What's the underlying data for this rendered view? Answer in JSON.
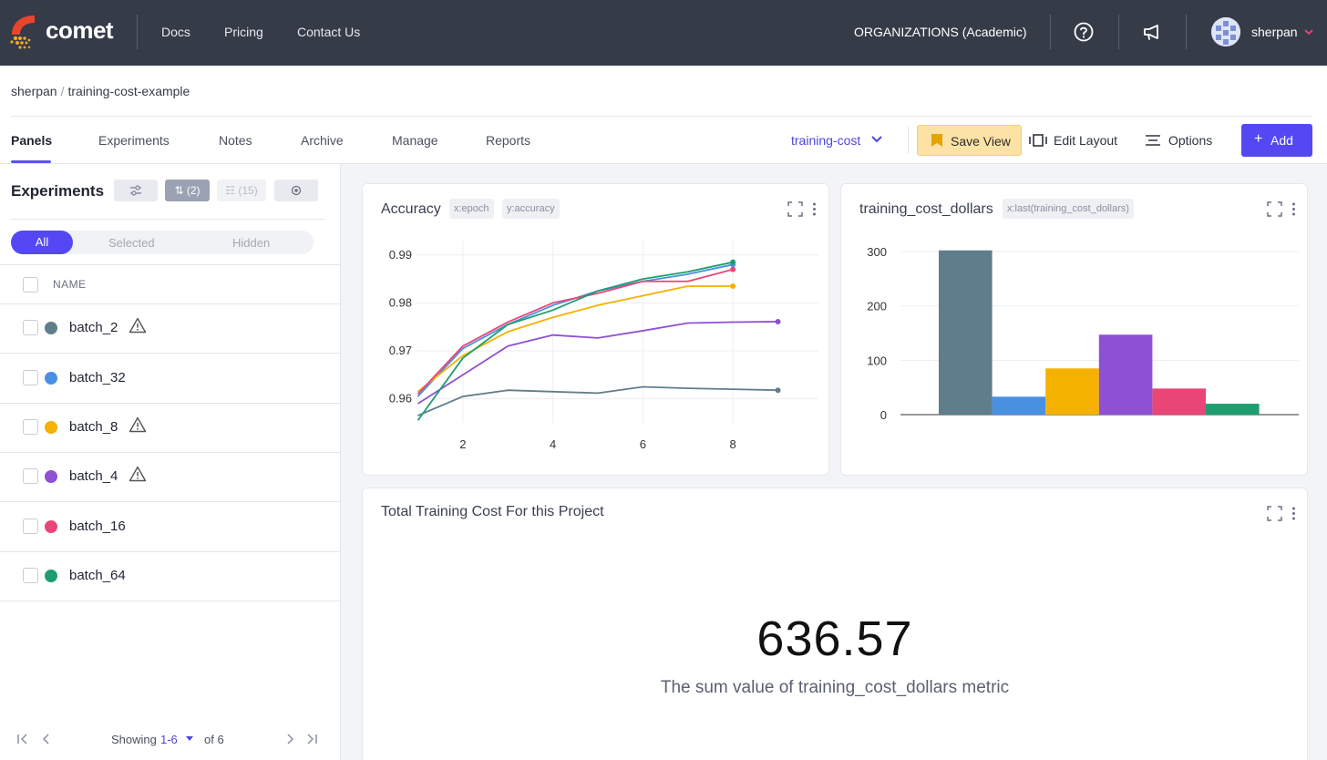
{
  "colors": {
    "nav_bg": "#363b48",
    "accent": "#5448f5",
    "save_view_bg": "#fde2a6",
    "batch_2": "#607d8b",
    "batch_32": "#4a90e2",
    "batch_8": "#f5b100",
    "batch_4": "#8e51d4",
    "batch_16": "#e94577",
    "batch_64": "#1e9e6f"
  },
  "topnav": {
    "brand": "comet",
    "links": [
      "Docs",
      "Pricing",
      "Contact Us"
    ],
    "org": "ORGANIZATIONS (Academic)",
    "help_icon": "help-icon",
    "announce_icon": "megaphone-icon",
    "username": "sherpan"
  },
  "breadcrumb": {
    "user": "sherpan",
    "sep": "/",
    "project": "training-cost-example"
  },
  "tabs": [
    "Panels",
    "Experiments",
    "Notes",
    "Archive",
    "Manage",
    "Reports"
  ],
  "toolbar": {
    "view": "training-cost",
    "save_view": "Save View",
    "edit_layout": "Edit Layout",
    "options": "Options",
    "add": "Add"
  },
  "sidebar": {
    "title": "Experiments",
    "chips": [
      "(2)",
      "(15)"
    ],
    "filters": [
      "All",
      "Selected",
      "Hidden"
    ],
    "column": "NAME",
    "experiments": [
      {
        "name": "batch_2",
        "color": "#607d8b",
        "warning": true
      },
      {
        "name": "batch_32",
        "color": "#4a90e2",
        "warning": false
      },
      {
        "name": "batch_8",
        "color": "#f5b100",
        "warning": true
      },
      {
        "name": "batch_4",
        "color": "#8e51d4",
        "warning": true
      },
      {
        "name": "batch_16",
        "color": "#e94577",
        "warning": false
      },
      {
        "name": "batch_64",
        "color": "#1e9e6f",
        "warning": false
      }
    ],
    "pager": {
      "showing": "Showing",
      "range": "1-6",
      "of": "of 6"
    }
  },
  "panels": {
    "accuracy": {
      "title": "Accuracy",
      "tag_x": "x:epoch",
      "tag_y": "y:accuracy"
    },
    "cost": {
      "title": "training_cost_dollars",
      "tag_x": "x:last(training_cost_dollars)"
    },
    "total": {
      "title": "Total Training Cost For this Project",
      "value": "636.57",
      "caption": "The sum value of training_cost_dollars metric"
    }
  },
  "chart_data": [
    {
      "type": "line",
      "xlim": [
        0.95,
        9.9
      ],
      "ylim": [
        0.955,
        0.993
      ],
      "x_ticks": [
        2,
        4,
        6,
        8
      ],
      "y_ticks": [
        0.96,
        0.97,
        0.98,
        0.99
      ],
      "grid": true,
      "series": [
        {
          "name": "batch_2",
          "color": "#607d8b",
          "x": [
            1,
            2,
            3,
            4,
            5,
            6,
            7,
            8,
            9
          ],
          "y": [
            0.9565,
            0.9605,
            0.9618,
            0.9615,
            0.9612,
            0.9625,
            0.9622,
            0.962,
            0.9618
          ]
        },
        {
          "name": "batch_32",
          "color": "#4a90e2",
          "x": [
            1,
            2,
            3,
            4,
            5,
            6,
            7,
            8
          ],
          "y": [
            0.9605,
            0.9705,
            0.9755,
            0.9795,
            0.9825,
            0.9845,
            0.986,
            0.988
          ]
        },
        {
          "name": "batch_8",
          "color": "#f5b100",
          "x": [
            1,
            2,
            3,
            4,
            5,
            6,
            7,
            8
          ],
          "y": [
            0.9615,
            0.969,
            0.974,
            0.977,
            0.9795,
            0.9815,
            0.9835,
            0.9835
          ]
        },
        {
          "name": "batch_4",
          "color": "#8e51d4",
          "x": [
            1,
            2,
            3,
            4,
            5,
            6,
            7,
            8,
            9
          ],
          "y": [
            0.959,
            0.965,
            0.971,
            0.9733,
            0.9727,
            0.9742,
            0.9758,
            0.976,
            0.9761
          ]
        },
        {
          "name": "batch_16",
          "color": "#e94577",
          "x": [
            1,
            2,
            3,
            4,
            5,
            6,
            7,
            8
          ],
          "y": [
            0.961,
            0.971,
            0.976,
            0.98,
            0.982,
            0.9845,
            0.9845,
            0.987
          ]
        },
        {
          "name": "batch_64",
          "color": "#1e9e6f",
          "x": [
            1,
            2,
            3,
            4,
            5,
            6,
            7,
            8
          ],
          "y": [
            0.9555,
            0.9685,
            0.9755,
            0.9785,
            0.9825,
            0.985,
            0.9865,
            0.9885
          ]
        }
      ]
    },
    {
      "type": "bar",
      "categories": [
        "batch_2",
        "batch_32",
        "batch_8",
        "batch_4",
        "batch_16",
        "batch_64"
      ],
      "values": [
        302,
        33,
        85,
        147,
        48,
        20
      ],
      "colors": [
        "#607d8b",
        "#4a90e2",
        "#f5b100",
        "#8e51d4",
        "#e94577",
        "#1e9e6f"
      ],
      "ylim": [
        0,
        320
      ],
      "y_ticks": [
        0,
        100,
        200,
        300
      ],
      "grid": true
    }
  ]
}
